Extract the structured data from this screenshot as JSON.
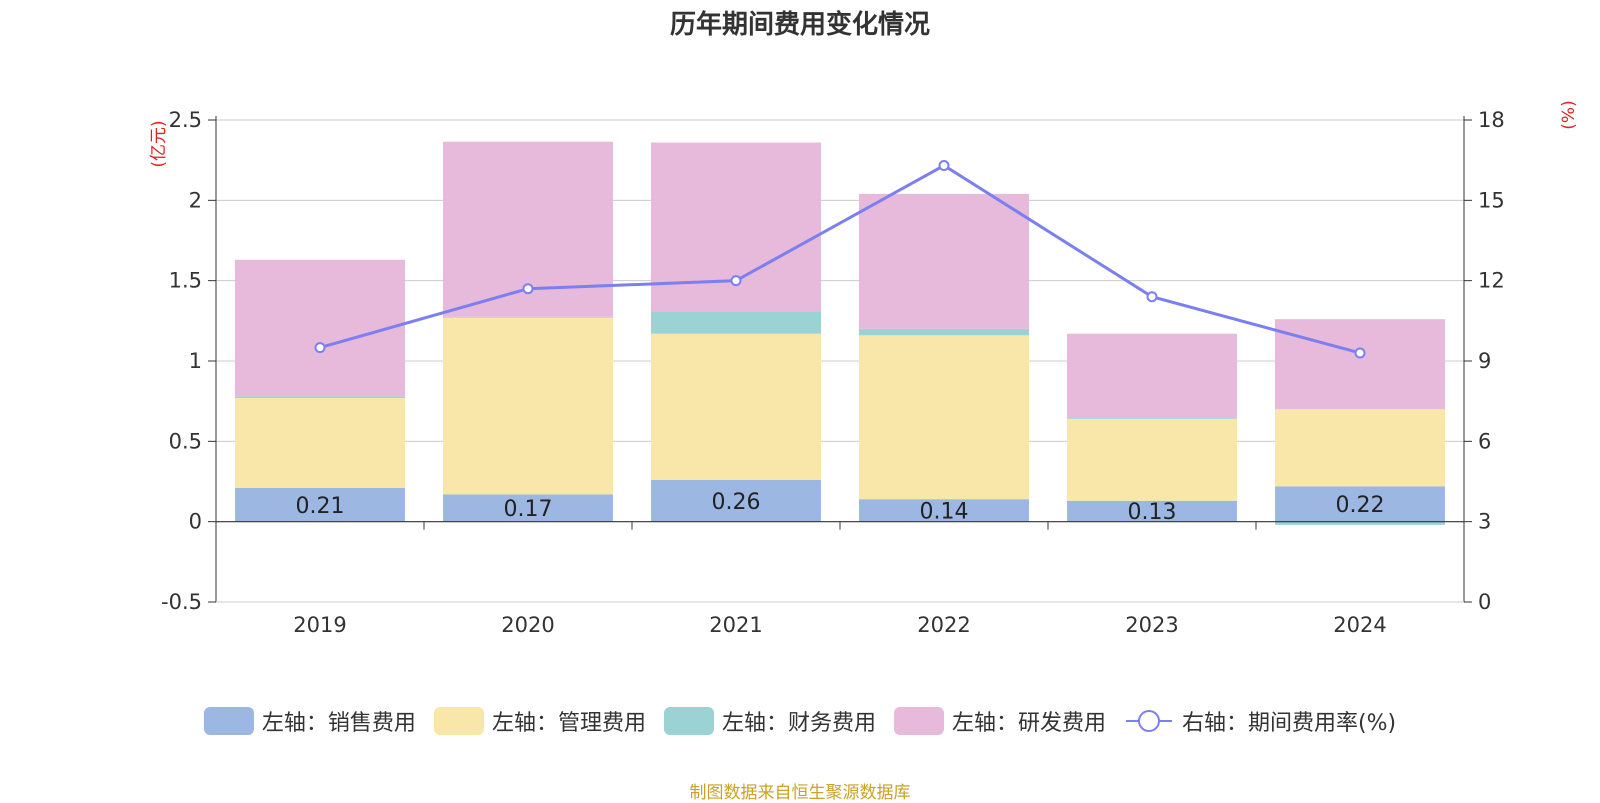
{
  "chart_data": {
    "type": "bar",
    "stacked": true,
    "title": "历年期间费用变化情况",
    "categories": [
      "2019",
      "2020",
      "2021",
      "2022",
      "2023",
      "2024"
    ],
    "left_axis": {
      "unit_label": "(亿元)",
      "min": -0.5,
      "max": 2.5,
      "ticks": [
        -0.5,
        0,
        0.5,
        1,
        1.5,
        2,
        2.5
      ],
      "tick_labels": [
        "-0.5",
        "0",
        "0.5",
        "1",
        "1.5",
        "2",
        "2.5"
      ]
    },
    "right_axis": {
      "unit_label": "(%)",
      "min": 0,
      "max": 18,
      "ticks": [
        0,
        3,
        6,
        9,
        12,
        15,
        18
      ],
      "tick_labels": [
        "0",
        "3",
        "6",
        "9",
        "12",
        "15",
        "18"
      ]
    },
    "series": [
      {
        "name": "左轴：销售费用",
        "axis": "left",
        "type": "bar",
        "color": "#9bb7e2",
        "values": [
          0.21,
          0.17,
          0.26,
          0.14,
          0.13,
          0.22
        ],
        "labels": [
          "0.21",
          "0.17",
          "0.26",
          "0.14",
          "0.13",
          "0.22"
        ]
      },
      {
        "name": "左轴：管理费用",
        "axis": "left",
        "type": "bar",
        "color": "#f8e7a8",
        "values": [
          0.56,
          1.1,
          0.91,
          1.02,
          0.51,
          0.48
        ]
      },
      {
        "name": "左轴：财务费用",
        "axis": "left",
        "type": "bar",
        "color": "#9bd3d5",
        "values": [
          0.01,
          0.005,
          0.14,
          0.04,
          0.01,
          -0.02
        ]
      },
      {
        "name": "左轴：研发费用",
        "axis": "left",
        "type": "bar",
        "color": "#e7b9da",
        "values": [
          0.85,
          1.09,
          1.05,
          0.84,
          0.52,
          0.56
        ]
      },
      {
        "name": "右轴：期间费用率(%)",
        "axis": "right",
        "type": "line",
        "color": "#7b7ff0",
        "values": [
          9.5,
          11.7,
          12.0,
          16.3,
          11.4,
          9.3
        ]
      }
    ],
    "legend_position": "bottom",
    "grid": true
  },
  "source_note": "制图数据来自恒生聚源数据库"
}
